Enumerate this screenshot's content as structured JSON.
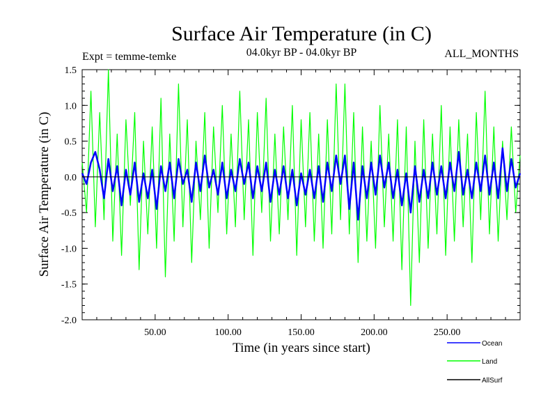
{
  "chart_data": {
    "type": "line",
    "title": "Surface Air Temperature (in C)",
    "subtitle_left": "Expt = temme-temke",
    "subtitle_center": "04.0kyr BP - 04.0kyr BP",
    "subtitle_right": "ALL_MONTHS",
    "xlabel": "Time (in years since start)",
    "ylabel": "Surface Air Temperature (in C)",
    "xlim": [
      0,
      300
    ],
    "ylim": [
      -2.0,
      1.5
    ],
    "xticks": [
      50,
      100,
      150,
      200,
      250
    ],
    "xtick_labels": [
      "50.00",
      "100.00",
      "150.00",
      "200.00",
      "250.00"
    ],
    "yticks": [
      -2.0,
      -1.5,
      -1.0,
      -0.5,
      0.0,
      0.5,
      1.0,
      1.5
    ],
    "ytick_labels": [
      "-2.0",
      "-1.5",
      "-1.0",
      "-0.5",
      "0.0",
      "0.5",
      "1.0",
      "1.5"
    ],
    "zero_line": true,
    "series": [
      {
        "name": "Land",
        "color": "#00ff00",
        "x": [
          0,
          3,
          6,
          9,
          12,
          15,
          18,
          21,
          24,
          27,
          30,
          33,
          36,
          39,
          42,
          45,
          48,
          51,
          54,
          57,
          60,
          63,
          66,
          69,
          72,
          75,
          78,
          81,
          84,
          87,
          90,
          93,
          96,
          99,
          102,
          105,
          108,
          111,
          114,
          117,
          120,
          123,
          126,
          129,
          132,
          135,
          138,
          141,
          144,
          147,
          150,
          153,
          156,
          159,
          162,
          165,
          168,
          171,
          174,
          177,
          180,
          183,
          186,
          189,
          192,
          195,
          198,
          201,
          204,
          207,
          210,
          213,
          216,
          219,
          222,
          225,
          228,
          231,
          234,
          237,
          240,
          243,
          246,
          249,
          252,
          255,
          258,
          261,
          264,
          267,
          270,
          273,
          276,
          279,
          282,
          285,
          288,
          291,
          294,
          297,
          300
        ],
        "values": [
          0.2,
          -0.5,
          1.2,
          -0.7,
          0.9,
          -0.6,
          1.5,
          -0.9,
          0.6,
          -1.1,
          0.8,
          -0.4,
          0.9,
          -1.3,
          0.5,
          -0.8,
          0.7,
          -1.0,
          1.1,
          -1.4,
          0.6,
          -0.9,
          1.3,
          -0.7,
          0.8,
          -1.2,
          0.5,
          -0.6,
          0.9,
          -1.0,
          0.7,
          -0.5,
          1.0,
          -0.8,
          0.6,
          -0.7,
          1.2,
          -0.6,
          0.8,
          -1.1,
          0.9,
          -0.5,
          1.1,
          -0.9,
          0.6,
          -0.8,
          0.7,
          -0.6,
          1.0,
          -1.1,
          0.8,
          -0.7,
          0.9,
          -0.9,
          0.6,
          -1.0,
          0.8,
          -0.8,
          1.3,
          -0.6,
          1.3,
          -0.8,
          0.9,
          -1.2,
          0.7,
          -0.9,
          0.5,
          -1.0,
          1.0,
          -0.7,
          0.6,
          -0.9,
          0.8,
          -1.3,
          0.7,
          -1.8,
          0.5,
          -1.2,
          0.8,
          -1.0,
          0.6,
          -0.8,
          1.0,
          -1.1,
          0.7,
          -0.9,
          0.8,
          -0.7,
          0.6,
          -1.2,
          0.9,
          -0.6,
          1.2,
          -0.8,
          0.7,
          -0.9,
          0.5,
          -0.6,
          0.7,
          -0.5,
          0.3
        ]
      },
      {
        "name": "Ocean",
        "color": "#0000ff",
        "x": [
          0,
          3,
          6,
          9,
          12,
          15,
          18,
          21,
          24,
          27,
          30,
          33,
          36,
          39,
          42,
          45,
          48,
          51,
          54,
          57,
          60,
          63,
          66,
          69,
          72,
          75,
          78,
          81,
          84,
          87,
          90,
          93,
          96,
          99,
          102,
          105,
          108,
          111,
          114,
          117,
          120,
          123,
          126,
          129,
          132,
          135,
          138,
          141,
          144,
          147,
          150,
          153,
          156,
          159,
          162,
          165,
          168,
          171,
          174,
          177,
          180,
          183,
          186,
          189,
          192,
          195,
          198,
          201,
          204,
          207,
          210,
          213,
          216,
          219,
          222,
          225,
          228,
          231,
          234,
          237,
          240,
          243,
          246,
          249,
          252,
          255,
          258,
          261,
          264,
          267,
          270,
          273,
          276,
          279,
          282,
          285,
          288,
          291,
          294,
          297,
          300
        ],
        "values": [
          0.05,
          -0.1,
          0.2,
          0.35,
          0.1,
          -0.3,
          0.25,
          -0.2,
          0.15,
          -0.4,
          0.1,
          -0.25,
          0.2,
          -0.35,
          0.05,
          -0.3,
          0.1,
          -0.45,
          0.15,
          -0.2,
          0.2,
          -0.3,
          0.25,
          -0.1,
          0.1,
          -0.35,
          0.2,
          -0.2,
          0.3,
          -0.15,
          0.1,
          -0.25,
          0.2,
          -0.3,
          0.1,
          -0.2,
          0.25,
          -0.1,
          0.2,
          -0.3,
          0.15,
          -0.2,
          0.2,
          -0.35,
          0.1,
          -0.25,
          0.15,
          -0.3,
          0.1,
          -0.4,
          0.05,
          -0.25,
          0.1,
          -0.3,
          0.15,
          -0.35,
          0.2,
          -0.2,
          0.3,
          -0.1,
          0.3,
          -0.45,
          0.2,
          -0.6,
          0.15,
          -0.3,
          0.2,
          -0.25,
          0.3,
          -0.15,
          0.2,
          -0.3,
          0.1,
          -0.4,
          0.05,
          -0.5,
          0.15,
          -0.35,
          0.1,
          -0.3,
          0.2,
          -0.25,
          0.15,
          -0.3,
          0.2,
          -0.2,
          0.35,
          -0.25,
          0.1,
          -0.3,
          0.2,
          -0.2,
          0.3,
          -0.25,
          0.2,
          -0.3,
          0.4,
          -0.2,
          0.25,
          -0.15,
          0.05
        ]
      },
      {
        "name": "AllSurf",
        "color": "#000000",
        "x": [],
        "values": []
      }
    ],
    "legend": {
      "position": "bottom-right",
      "entries": [
        {
          "name": "Ocean",
          "color": "#0000ff"
        },
        {
          "name": "Land",
          "color": "#00ff00"
        },
        {
          "name": "AllSurf",
          "color": "#000000"
        }
      ]
    }
  }
}
